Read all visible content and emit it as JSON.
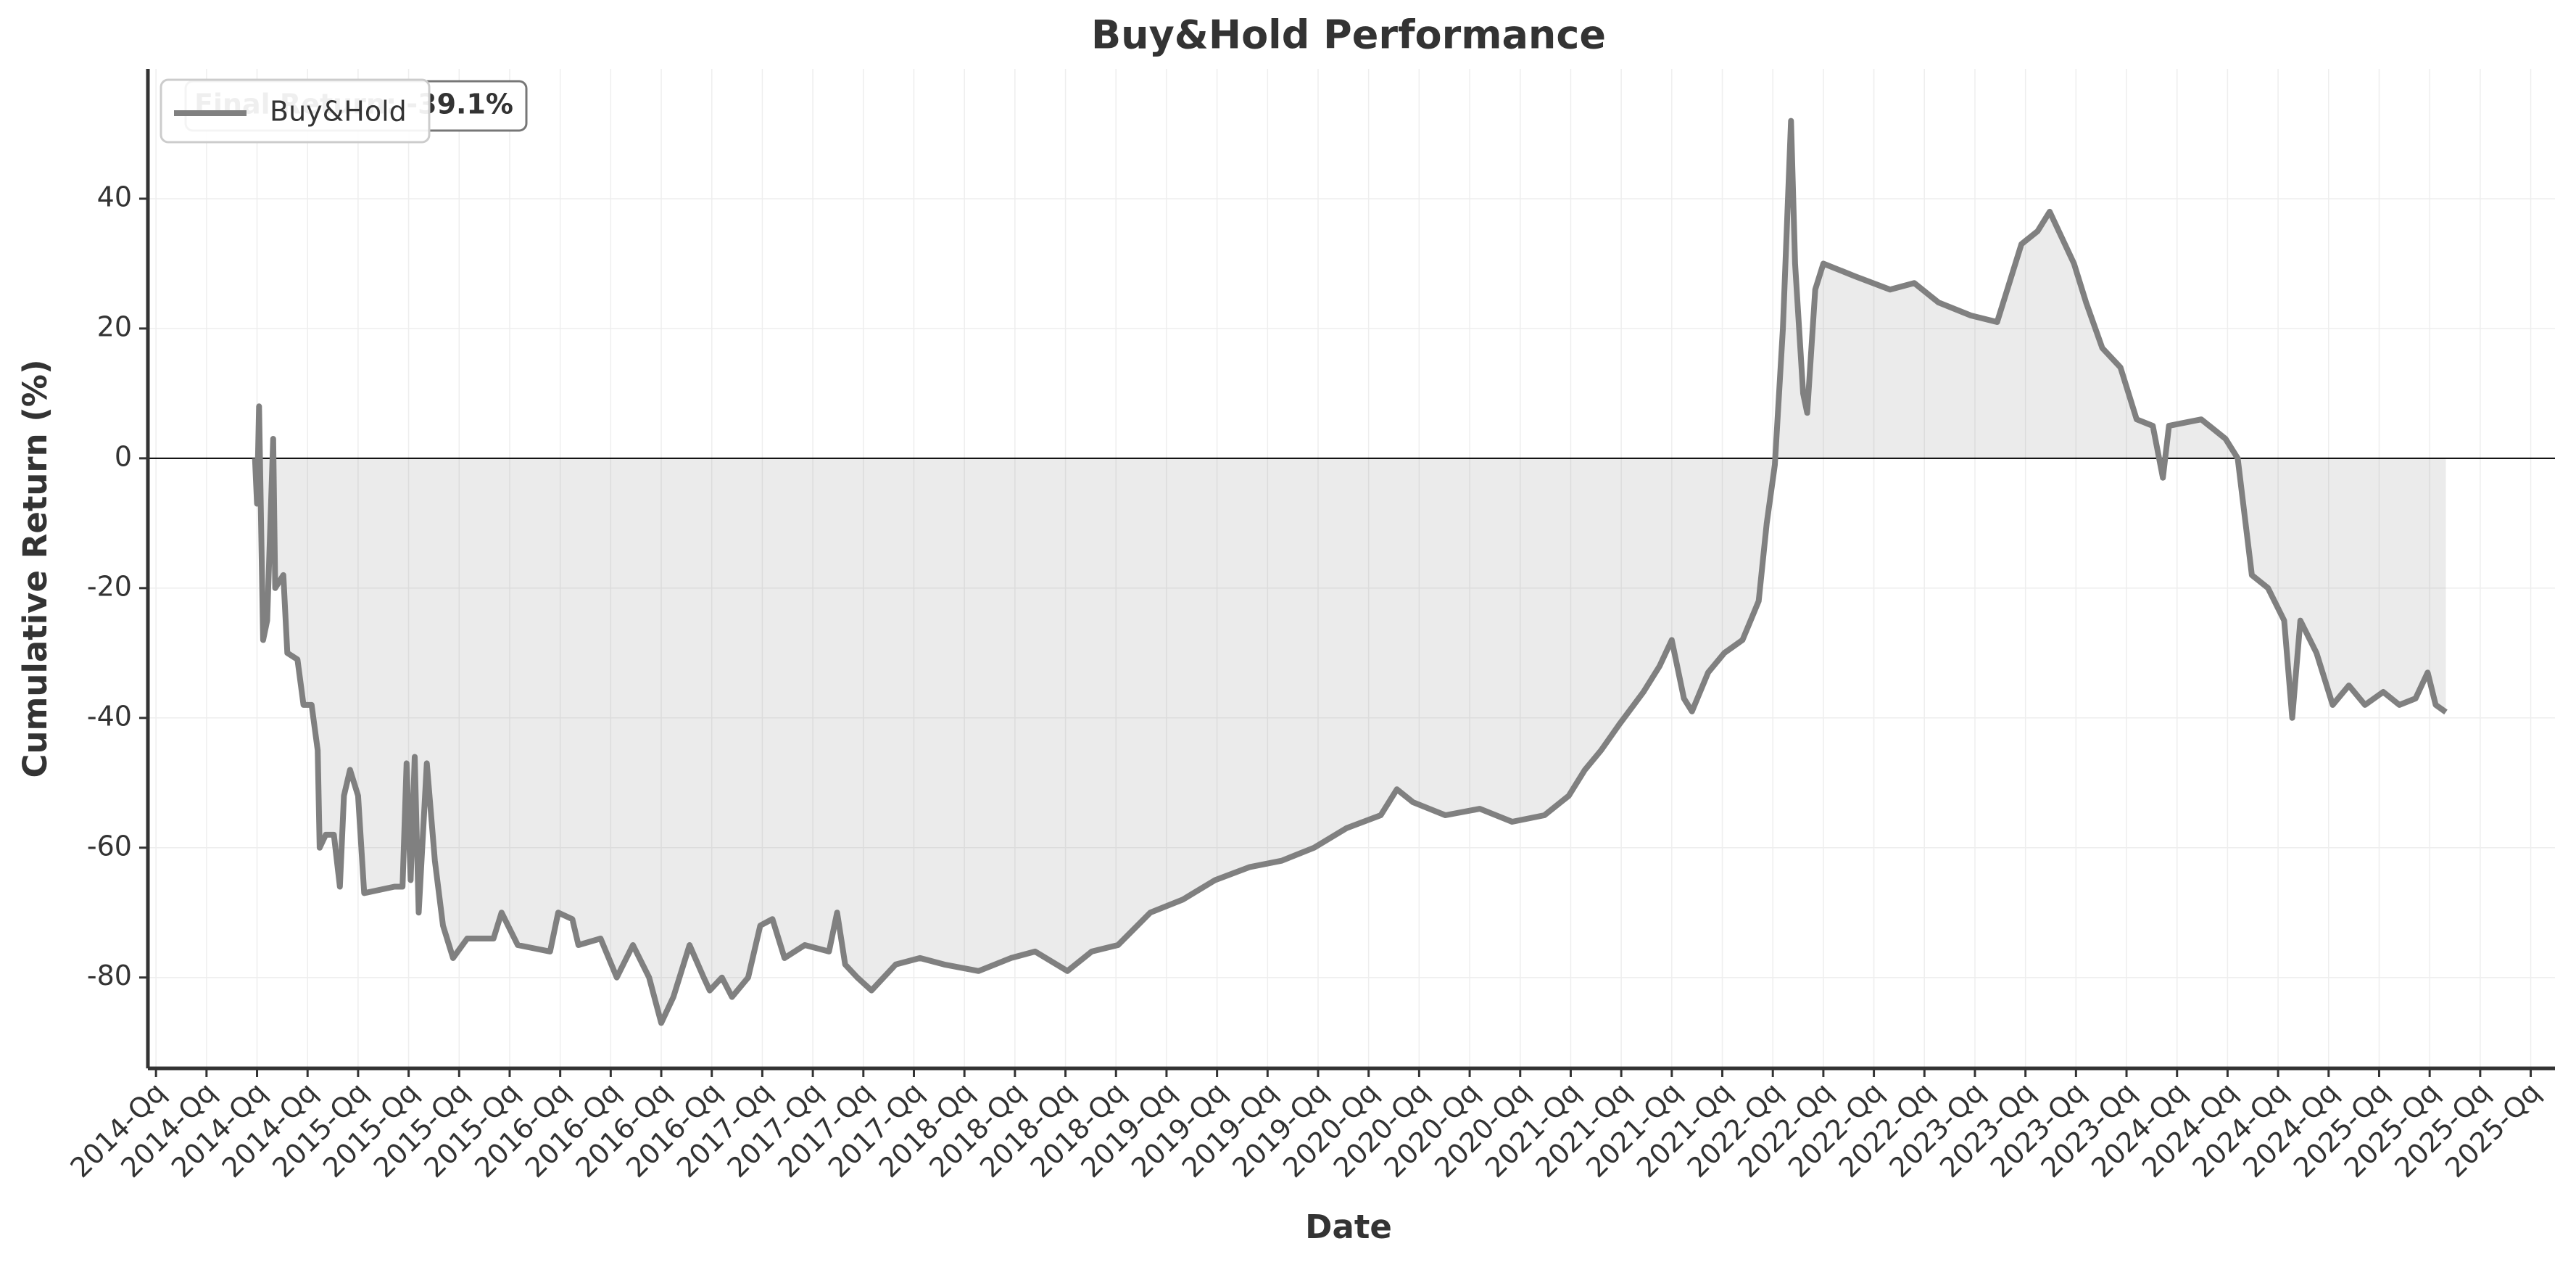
{
  "chart_data": {
    "type": "line",
    "title": "Buy&Hold Performance",
    "xlabel": "Date",
    "ylabel": "Cumulative Return (%)",
    "annotation": "Final Return: -39.1%",
    "x": [
      2014.49,
      2014.5,
      2014.51,
      2014.53,
      2014.55,
      2014.58,
      2014.59,
      2014.63,
      2014.65,
      2014.7,
      2014.73,
      2014.77,
      2014.8,
      2014.81,
      2014.84,
      2014.88,
      2014.91,
      2014.93,
      2014.96,
      2015,
      2015.03,
      2015.18,
      2015.22,
      2015.24,
      2015.26,
      2015.28,
      2015.3,
      2015.34,
      2015.38,
      2015.42,
      2015.47,
      2015.54,
      2015.67,
      2015.71,
      2015.79,
      2015.95,
      2015.99,
      2016.06,
      2016.09,
      2016.2,
      2016.28,
      2016.36,
      2016.44,
      2016.5,
      2016.56,
      2016.64,
      2016.71,
      2016.74,
      2016.8,
      2016.85,
      2016.93,
      2016.99,
      2017.05,
      2017.11,
      2017.21,
      2017.33,
      2017.37,
      2017.41,
      2017.47,
      2017.54,
      2017.66,
      2017.78,
      2017.9,
      2018.07,
      2018.23,
      2018.35,
      2018.51,
      2018.63,
      2018.76,
      2018.92,
      2019.08,
      2019.24,
      2019.41,
      2019.57,
      2019.73,
      2019.89,
      2020.06,
      2020.14,
      2020.22,
      2020.3,
      2020.38,
      2020.55,
      2020.71,
      2020.87,
      2020.99,
      2021.07,
      2021.15,
      2021.24,
      2021.36,
      2021.44,
      2021.5,
      2021.56,
      2021.6,
      2021.68,
      2021.76,
      2021.85,
      2021.93,
      2021.97,
      2022.01,
      2022.05,
      2022.09,
      2022.11,
      2022.15,
      2022.17,
      2022.21,
      2022.25,
      2022.41,
      2022.58,
      2022.7,
      2022.82,
      2022.98,
      2023.11,
      2023.15,
      2023.23,
      2023.31,
      2023.37,
      2023.43,
      2023.49,
      2023.55,
      2023.63,
      2023.72,
      2023.8,
      2023.88,
      2023.93,
      2023.96,
      2024.12,
      2024.24,
      2024.3,
      2024.37,
      2024.45,
      2024.53,
      2024.57,
      2024.61,
      2024.69,
      2024.77,
      2024.85,
      2024.93,
      2025.02,
      2025.1,
      2025.18,
      2025.24,
      2025.28,
      2025.33
    ],
    "series": [
      {
        "name": "Buy&Hold",
        "color": "#808080",
        "values": [
          0,
          -7,
          8,
          -28,
          -25,
          3,
          -20,
          -18,
          -30,
          -31,
          -38,
          -38,
          -45,
          -60,
          -58,
          -58,
          -66,
          -52,
          -48,
          -52,
          -67,
          -66,
          -66,
          -47,
          -65,
          -46,
          -70,
          -47,
          -62,
          -72,
          -77,
          -74,
          -74,
          -70,
          -75,
          -76,
          -70,
          -71,
          -75,
          -74,
          -80,
          -75,
          -80,
          -87,
          -83,
          -75,
          -80,
          -82,
          -80,
          -83,
          -80,
          -72,
          -71,
          -77,
          -75,
          -76,
          -70,
          -78,
          -80,
          -82,
          -78,
          -77,
          -78,
          -79,
          -77,
          -76,
          -79,
          -76,
          -75,
          -70,
          -68,
          -65,
          -63,
          -62,
          -60,
          -57,
          -55,
          -51,
          -53,
          -54,
          -55,
          -54,
          -56,
          -55,
          -52,
          -48,
          -45,
          -41,
          -36,
          -32,
          -28,
          -37,
          -39,
          -33,
          -30,
          -28,
          -22,
          -10,
          -1,
          20,
          52,
          30,
          10,
          7,
          26,
          30,
          28,
          26,
          27,
          24,
          22,
          21,
          25,
          33,
          35,
          38,
          34,
          30,
          24,
          17,
          14,
          6,
          5,
          -3,
          5,
          6,
          3,
          0,
          -18,
          -20,
          -25,
          -40,
          -25,
          -30,
          -38,
          -35,
          -38,
          -36,
          -38,
          -37,
          -33,
          -38,
          -39.1
        ]
      }
    ],
    "xlim": [
      2013.96,
      2025.87
    ],
    "ylim": [
      -94,
      60
    ],
    "yticks": [
      -80,
      -60,
      -40,
      -20,
      0,
      20,
      40
    ],
    "xticks": [
      {
        "value": 2014,
        "label": "2014-Qq"
      },
      {
        "value": 2014.25,
        "label": "2014-Qq"
      },
      {
        "value": 2014.5,
        "label": "2014-Qq"
      },
      {
        "value": 2014.75,
        "label": "2014-Qq"
      },
      {
        "value": 2015,
        "label": "2015-Qq"
      },
      {
        "value": 2015.25,
        "label": "2015-Qq"
      },
      {
        "value": 2015.5,
        "label": "2015-Qq"
      },
      {
        "value": 2015.75,
        "label": "2015-Qq"
      },
      {
        "value": 2016,
        "label": "2016-Qq"
      },
      {
        "value": 2016.25,
        "label": "2016-Qq"
      },
      {
        "value": 2016.5,
        "label": "2016-Qq"
      },
      {
        "value": 2016.75,
        "label": "2016-Qq"
      },
      {
        "value": 2017,
        "label": "2017-Qq"
      },
      {
        "value": 2017.25,
        "label": "2017-Qq"
      },
      {
        "value": 2017.5,
        "label": "2017-Qq"
      },
      {
        "value": 2017.75,
        "label": "2017-Qq"
      },
      {
        "value": 2018,
        "label": "2018-Qq"
      },
      {
        "value": 2018.25,
        "label": "2018-Qq"
      },
      {
        "value": 2018.5,
        "label": "2018-Qq"
      },
      {
        "value": 2018.75,
        "label": "2018-Qq"
      },
      {
        "value": 2019,
        "label": "2019-Qq"
      },
      {
        "value": 2019.25,
        "label": "2019-Qq"
      },
      {
        "value": 2019.5,
        "label": "2019-Qq"
      },
      {
        "value": 2019.75,
        "label": "2019-Qq"
      },
      {
        "value": 2020,
        "label": "2020-Qq"
      },
      {
        "value": 2020.25,
        "label": "2020-Qq"
      },
      {
        "value": 2020.5,
        "label": "2020-Qq"
      },
      {
        "value": 2020.75,
        "label": "2020-Qq"
      },
      {
        "value": 2021,
        "label": "2021-Qq"
      },
      {
        "value": 2021.25,
        "label": "2021-Qq"
      },
      {
        "value": 2021.5,
        "label": "2021-Qq"
      },
      {
        "value": 2021.75,
        "label": "2021-Qq"
      },
      {
        "value": 2022,
        "label": "2022-Qq"
      },
      {
        "value": 2022.25,
        "label": "2022-Qq"
      },
      {
        "value": 2022.5,
        "label": "2022-Qq"
      },
      {
        "value": 2022.75,
        "label": "2022-Qq"
      },
      {
        "value": 2023,
        "label": "2023-Qq"
      },
      {
        "value": 2023.25,
        "label": "2023-Qq"
      },
      {
        "value": 2023.5,
        "label": "2023-Qq"
      },
      {
        "value": 2023.75,
        "label": "2023-Qq"
      },
      {
        "value": 2024,
        "label": "2024-Qq"
      },
      {
        "value": 2024.25,
        "label": "2024-Qq"
      },
      {
        "value": 2024.5,
        "label": "2024-Qq"
      },
      {
        "value": 2024.75,
        "label": "2024-Qq"
      },
      {
        "value": 2025,
        "label": "2025-Qq"
      },
      {
        "value": 2025.25,
        "label": "2025-Qq"
      },
      {
        "value": 2025.5,
        "label": "2025-Qq"
      },
      {
        "value": 2025.75,
        "label": "2025-Qq"
      }
    ],
    "grid": true,
    "zero_line": true,
    "fill": true,
    "legend": "upper left"
  }
}
